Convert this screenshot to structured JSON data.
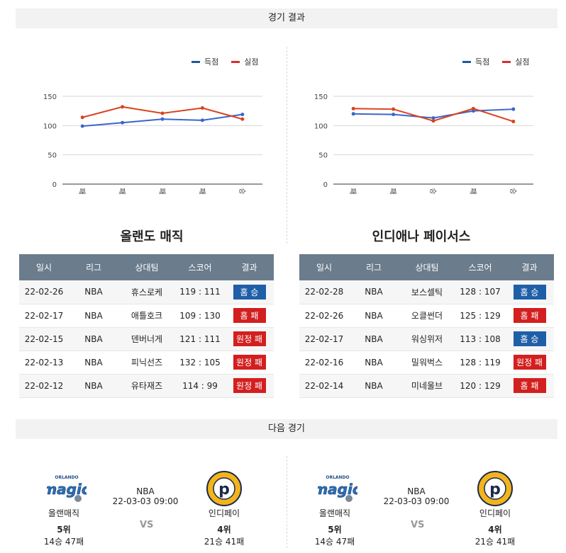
{
  "sections": {
    "results_title": "경기 결과",
    "next_title": "다음 경기"
  },
  "legend": {
    "scored": "득점",
    "conceded": "실점",
    "scored_color": "#1e5a9c",
    "conceded_color": "#d32f2f"
  },
  "colors": {
    "scored_line": "#3a66c9",
    "conceded_line": "#d9421f",
    "header_bg": "#6b7c8c",
    "win": "#1f5fa8",
    "loss": "#d31f1f"
  },
  "chart_data": [
    {
      "type": "line",
      "categories": [
        "패",
        "패",
        "패",
        "패",
        "승"
      ],
      "series": [
        {
          "name": "득점",
          "values": [
            99,
            105,
            111,
            109,
            119
          ]
        },
        {
          "name": "실점",
          "values": [
            114,
            132,
            121,
            130,
            111
          ]
        }
      ],
      "yticks": [
        0,
        50,
        100,
        150
      ],
      "ylim": [
        0,
        160
      ],
      "grid": true,
      "legend_position": "top-right"
    },
    {
      "type": "line",
      "categories": [
        "패",
        "패",
        "승",
        "패",
        "승"
      ],
      "series": [
        {
          "name": "득점",
          "values": [
            120,
            119,
            113,
            125,
            128
          ]
        },
        {
          "name": "실점",
          "values": [
            129,
            128,
            108,
            129,
            107
          ]
        }
      ],
      "yticks": [
        0,
        50,
        100,
        150
      ],
      "ylim": [
        0,
        160
      ],
      "grid": true,
      "legend_position": "top-right"
    }
  ],
  "teams": {
    "left": {
      "name": "올랜도 매직",
      "headers": [
        "일시",
        "리그",
        "상대팀",
        "스코어",
        "결과"
      ],
      "rows": [
        {
          "date": "22-02-26",
          "league": "NBA",
          "opponent": "휴스로케",
          "score": "119 : 111",
          "result": "홈 승",
          "win": true
        },
        {
          "date": "22-02-17",
          "league": "NBA",
          "opponent": "애틀호크",
          "score": "109 : 130",
          "result": "홈 패",
          "win": false
        },
        {
          "date": "22-02-15",
          "league": "NBA",
          "opponent": "덴버너게",
          "score": "121 : 111",
          "result": "원정 패",
          "win": false
        },
        {
          "date": "22-02-13",
          "league": "NBA",
          "opponent": "피닉선즈",
          "score": "132 : 105",
          "result": "원정 패",
          "win": false
        },
        {
          "date": "22-02-12",
          "league": "NBA",
          "opponent": "유타재즈",
          "score": "114 : 99",
          "result": "원정 패",
          "win": false
        }
      ]
    },
    "right": {
      "name": "인디애나 페이서스",
      "headers": [
        "일시",
        "리그",
        "상대팀",
        "스코어",
        "결과"
      ],
      "rows": [
        {
          "date": "22-02-28",
          "league": "NBA",
          "opponent": "보스셀틱",
          "score": "128 : 107",
          "result": "홈 승",
          "win": true
        },
        {
          "date": "22-02-26",
          "league": "NBA",
          "opponent": "오클썬더",
          "score": "125 : 129",
          "result": "홈 패",
          "win": false
        },
        {
          "date": "22-02-17",
          "league": "NBA",
          "opponent": "워싱위저",
          "score": "113 : 108",
          "result": "홈 승",
          "win": true
        },
        {
          "date": "22-02-16",
          "league": "NBA",
          "opponent": "밀워벅스",
          "score": "128 : 119",
          "result": "원정 패",
          "win": false
        },
        {
          "date": "22-02-14",
          "league": "NBA",
          "opponent": "미네울브",
          "score": "120 : 129",
          "result": "홈 패",
          "win": false
        }
      ]
    }
  },
  "next_match": {
    "home": {
      "name": "올랜매직",
      "rank": "5위",
      "record": "14승 47패",
      "logo_text": "magic",
      "logo_top": "ORLANDO"
    },
    "away": {
      "name": "인디페이",
      "rank": "4위",
      "record": "21승 41패",
      "logo_text": "p",
      "logo_ring": "INDIANA PACERS"
    },
    "league": "NBA",
    "datetime": "22-03-03 09:00",
    "vs": "VS"
  }
}
